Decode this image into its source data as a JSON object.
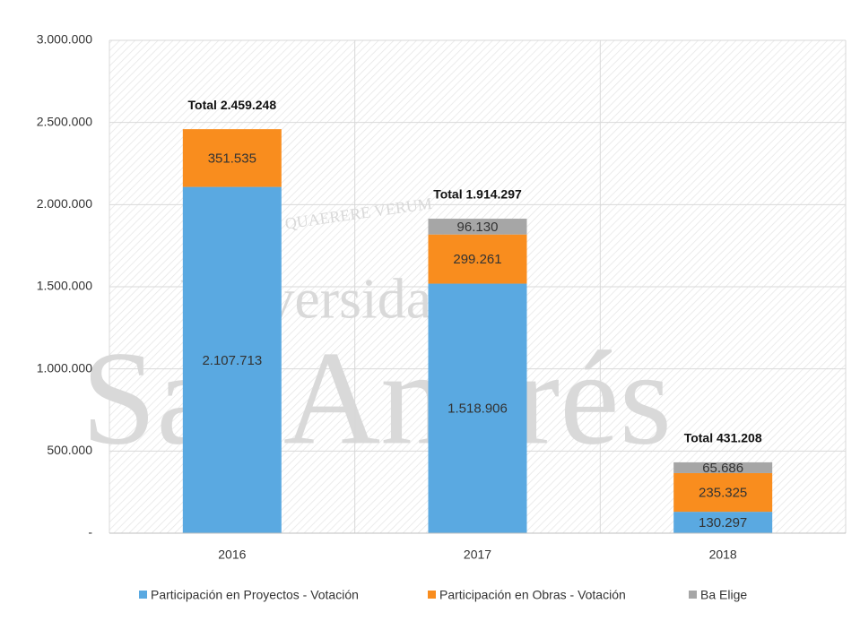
{
  "chart_data": {
    "type": "stacked_bar",
    "categories": [
      "2016",
      "2017",
      "2018"
    ],
    "series": [
      {
        "name": "Participación en Proyectos - Votación",
        "color": "#5aa9e1",
        "values": [
          2107713,
          1518906,
          130297
        ],
        "value_labels": [
          "2.107.713",
          "1.518.906",
          "130.297"
        ]
      },
      {
        "name": "Participación en Obras - Votación",
        "color": "#f98d1e",
        "values": [
          351535,
          299261,
          235325
        ],
        "value_labels": [
          "351.535",
          "299.261",
          "235.325"
        ]
      },
      {
        "name": "Ba Elige",
        "color": "#a6a6a6",
        "values": [
          null,
          96130,
          65686
        ],
        "value_labels": [
          null,
          "96.130",
          "65.686"
        ]
      }
    ],
    "total_labels": [
      "Total 2.459.248",
      "Total 1.914.297",
      "Total 431.208"
    ],
    "ylim": [
      0,
      3000000
    ],
    "yticks": [
      {
        "value": 0,
        "label": "-"
      },
      {
        "value": 500000,
        "label": "500.000"
      },
      {
        "value": 1000000,
        "label": "1.000.000"
      },
      {
        "value": 1500000,
        "label": "1.500.000"
      },
      {
        "value": 2000000,
        "label": "2.000.000"
      },
      {
        "value": 2500000,
        "label": "2.500.000"
      },
      {
        "value": 3000000,
        "label": "3.000.000"
      }
    ],
    "grid": true,
    "watermark": [
      "QUAERERE VERUM",
      "Universidad de",
      "SanAndrés"
    ]
  }
}
